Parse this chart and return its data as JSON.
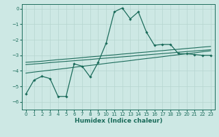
{
  "title": "",
  "xlabel": "Humidex (Indice chaleur)",
  "ylabel": "",
  "bg_color": "#cde8e4",
  "grid_color": "#b5d5cf",
  "line_color": "#1a6b5a",
  "xlim": [
    -0.5,
    23.5
  ],
  "ylim": [
    -6.5,
    0.3
  ],
  "yticks": [
    0,
    -1,
    -2,
    -3,
    -4,
    -5,
    -6
  ],
  "xticks": [
    0,
    1,
    2,
    3,
    4,
    5,
    6,
    7,
    8,
    9,
    10,
    11,
    12,
    13,
    14,
    15,
    16,
    17,
    18,
    19,
    20,
    21,
    22,
    23
  ],
  "series": {
    "line_main": {
      "x": [
        0,
        1,
        2,
        3,
        4,
        5,
        6,
        7,
        8,
        9,
        10,
        11,
        12,
        13,
        14,
        15,
        16,
        17,
        18,
        19,
        20,
        21,
        22,
        23
      ],
      "y": [
        -5.5,
        -4.6,
        -4.35,
        -4.5,
        -5.65,
        -5.65,
        -3.55,
        -3.7,
        -4.4,
        -3.45,
        -2.2,
        -0.2,
        0.05,
        -0.65,
        -0.2,
        -1.5,
        -2.35,
        -2.3,
        -2.3,
        -2.9,
        -2.9,
        -2.95,
        -3.0,
        -3.0
      ]
    },
    "line_upper": {
      "x": [
        0,
        1,
        2,
        3,
        4,
        5,
        6,
        7,
        8,
        9,
        10,
        11,
        12,
        13,
        14,
        15,
        16,
        17,
        18,
        19,
        20,
        21,
        22,
        23
      ],
      "y": [
        -3.45,
        -3.42,
        -3.38,
        -3.33,
        -3.28,
        -3.24,
        -3.2,
        -3.15,
        -3.1,
        -3.06,
        -3.01,
        -2.97,
        -2.92,
        -2.88,
        -2.83,
        -2.79,
        -2.74,
        -2.7,
        -2.65,
        -2.61,
        -2.56,
        -2.52,
        -2.47,
        -2.43
      ]
    },
    "line_mid": {
      "x": [
        0,
        1,
        2,
        3,
        4,
        5,
        6,
        7,
        8,
        9,
        10,
        11,
        12,
        13,
        14,
        15,
        16,
        17,
        18,
        19,
        20,
        21,
        22,
        23
      ],
      "y": [
        -3.6,
        -3.56,
        -3.52,
        -3.47,
        -3.43,
        -3.39,
        -3.35,
        -3.31,
        -3.27,
        -3.22,
        -3.18,
        -3.14,
        -3.1,
        -3.06,
        -3.01,
        -2.97,
        -2.93,
        -2.89,
        -2.85,
        -2.8,
        -2.76,
        -2.72,
        -2.68,
        -2.64
      ]
    },
    "line_lower": {
      "x": [
        0,
        1,
        2,
        3,
        4,
        5,
        6,
        7,
        8,
        9,
        10,
        11,
        12,
        13,
        14,
        15,
        16,
        17,
        18,
        19,
        20,
        21,
        22,
        23
      ],
      "y": [
        -4.15,
        -4.08,
        -4.02,
        -3.96,
        -3.9,
        -3.84,
        -3.77,
        -3.71,
        -3.65,
        -3.59,
        -3.52,
        -3.46,
        -3.4,
        -3.34,
        -3.27,
        -3.21,
        -3.15,
        -3.09,
        -3.02,
        -2.96,
        -2.9,
        -2.84,
        -2.77,
        -2.71
      ]
    }
  }
}
